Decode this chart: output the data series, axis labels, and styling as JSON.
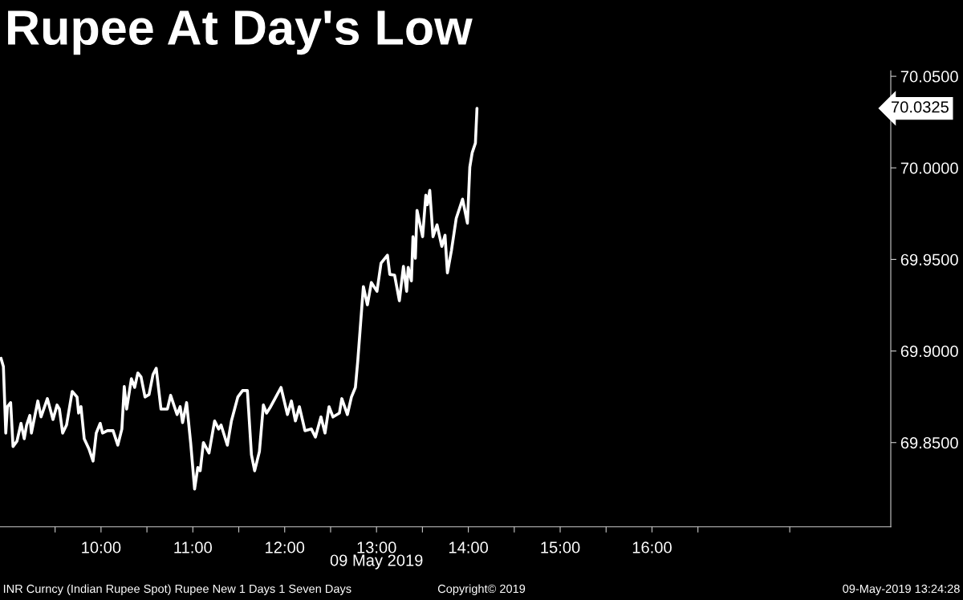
{
  "chart_data": {
    "type": "line",
    "title": "Rupee At Day's Low",
    "xlabel": "09 May 2019",
    "x": [
      8.911,
      8.937,
      8.963,
      8.981,
      9.016,
      9.042,
      9.085,
      9.129,
      9.164,
      9.19,
      9.225,
      9.242,
      9.312,
      9.347,
      9.416,
      9.477,
      9.521,
      9.547,
      9.582,
      9.625,
      9.686,
      9.739,
      9.756,
      9.782,
      9.817,
      9.869,
      9.913,
      9.948,
      9.991,
      10.017,
      10.07,
      10.131,
      10.183,
      10.227,
      10.253,
      10.279,
      10.331,
      10.366,
      10.401,
      10.436,
      10.479,
      10.523,
      10.566,
      10.601,
      10.653,
      10.723,
      10.758,
      10.828,
      10.862,
      10.888,
      10.932,
      10.976,
      11.019,
      11.054,
      11.08,
      11.115,
      11.176,
      11.237,
      11.281,
      11.307,
      11.376,
      11.42,
      11.49,
      11.542,
      11.594,
      11.638,
      11.673,
      11.725,
      11.768,
      11.803,
      11.847,
      11.89,
      11.96,
      12.03,
      12.073,
      12.117,
      12.16,
      12.221,
      12.291,
      12.335,
      12.395,
      12.439,
      12.483,
      12.526,
      12.596,
      12.622,
      12.683,
      12.727,
      12.77,
      12.796,
      12.857,
      12.901,
      12.944,
      13.005,
      13.049,
      13.119,
      13.145,
      13.197,
      13.249,
      13.293,
      13.328,
      13.345,
      13.38,
      13.397,
      13.423,
      13.441,
      13.502,
      13.537,
      13.554,
      13.58,
      13.615,
      13.659,
      13.711,
      13.746,
      13.772,
      13.816,
      13.868,
      13.937,
      13.99,
      14.016,
      14.042,
      14.077,
      14.094
    ],
    "series": [
      {
        "color": "#ffffff",
        "values": [
          69.896,
          69.8915,
          69.8552,
          69.8696,
          69.8718,
          69.8478,
          69.8508,
          69.8605,
          69.8521,
          69.8596,
          69.8648,
          69.8552,
          69.8727,
          69.864,
          69.874,
          69.8626,
          69.8705,
          69.8683,
          69.8552,
          69.8596,
          69.8779,
          69.8749,
          69.8661,
          69.8696,
          69.8521,
          69.8465,
          69.8399,
          69.8552,
          69.8605,
          69.8552,
          69.8565,
          69.8565,
          69.8486,
          69.8574,
          69.8806,
          69.8683,
          69.8849,
          69.8801,
          69.888,
          69.8858,
          69.8749,
          69.8762,
          69.8871,
          69.8906,
          69.8683,
          69.8683,
          69.8758,
          69.8653,
          69.8696,
          69.8609,
          69.8718,
          69.85,
          69.8246,
          69.8364,
          69.8346,
          69.85,
          69.8443,
          69.8618,
          69.8574,
          69.8596,
          69.8486,
          69.8618,
          69.8749,
          69.8784,
          69.8784,
          69.8434,
          69.8346,
          69.8451,
          69.8705,
          69.8661,
          69.8696,
          69.8736,
          69.8801,
          69.8653,
          69.8727,
          69.8618,
          69.8696,
          69.8565,
          69.8574,
          69.853,
          69.864,
          69.8552,
          69.8696,
          69.864,
          69.8661,
          69.874,
          69.8653,
          69.8749,
          69.8801,
          69.8946,
          69.9352,
          69.9252,
          69.9374,
          69.9326,
          69.9479,
          69.9523,
          69.9418,
          69.9414,
          69.9274,
          69.9462,
          69.9326,
          69.9457,
          69.9383,
          69.9624,
          69.9506,
          69.9768,
          69.9624,
          69.9851,
          69.9799,
          69.9877,
          69.9624,
          69.9689,
          69.9571,
          69.9632,
          69.9427,
          69.9549,
          69.9724,
          69.9829,
          69.9698,
          70.0004,
          70.0083,
          70.0135,
          70.0325
        ]
      }
    ],
    "xlim": [
      8.9,
      18.6
    ],
    "xticks": [
      {
        "value": 9.5,
        "label": null
      },
      {
        "value": 10,
        "label": "10:00"
      },
      {
        "value": 10.5,
        "label": null
      },
      {
        "value": 11,
        "label": "11:00"
      },
      {
        "value": 11.5,
        "label": null
      },
      {
        "value": 12,
        "label": "12:00"
      },
      {
        "value": 12.5,
        "label": null
      },
      {
        "value": 13,
        "label": "13:00"
      },
      {
        "value": 13.5,
        "label": null
      },
      {
        "value": 14,
        "label": "14:00"
      },
      {
        "value": 14.5,
        "label": null
      },
      {
        "value": 15,
        "label": "15:00"
      },
      {
        "value": 15.5,
        "label": null
      },
      {
        "value": 16,
        "label": "16:00"
      },
      {
        "value": 16.5,
        "label": null
      },
      {
        "value": 17.5,
        "label": null
      }
    ],
    "ylim": [
      69.804,
      70.053
    ],
    "yticks": [
      {
        "value": 69.85,
        "label": "69.8500"
      },
      {
        "value": 69.9,
        "label": "69.9000"
      },
      {
        "value": 69.95,
        "label": "69.9500"
      },
      {
        "value": 70.0,
        "label": "70.0000"
      },
      {
        "value": 70.05,
        "label": "70.0500"
      }
    ],
    "grid": false,
    "line_style": "solid",
    "marker": "none",
    "annotations": [
      "70.0325",
      "INR Curncy (Indian Rupee Spot) Rupee New 1 Days 1 Seven Days",
      "Copyright© 2019",
      "09-May-2019 13:24:28"
    ]
  }
}
